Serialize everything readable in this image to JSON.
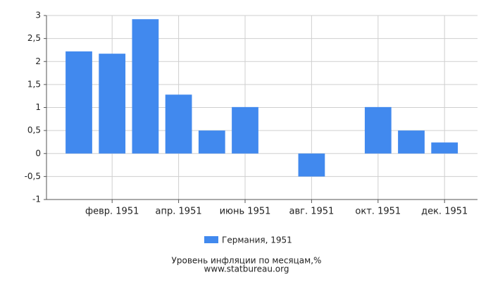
{
  "chart_data": {
    "type": "bar",
    "title": "Уровень инфляции по месяцам,%",
    "subtitle": "www.statbureau.org",
    "categories": [
      null,
      "февр. 1951",
      null,
      "апр. 1951",
      null,
      "июнь 1951",
      null,
      "авг. 1951",
      null,
      "окт. 1951",
      null,
      "дек. 1951"
    ],
    "series": [
      {
        "name": "Германия, 1951",
        "color": "#4189ee",
        "values": [
          2.22,
          2.17,
          2.92,
          1.28,
          0.5,
          1.01,
          0,
          -0.5,
          0,
          1.01,
          0.5,
          0.24
        ]
      }
    ],
    "ylim": [
      -1,
      3
    ],
    "yticks": [
      {
        "value": -1,
        "label": "-1"
      },
      {
        "value": -0.5,
        "label": "-0,5"
      },
      0,
      {
        "value": 0.5,
        "label": "0,5"
      },
      1,
      {
        "value": 1.5,
        "label": "1,5"
      },
      2,
      {
        "value": 2.5,
        "label": "2,5"
      },
      3
    ],
    "grid": true
  }
}
